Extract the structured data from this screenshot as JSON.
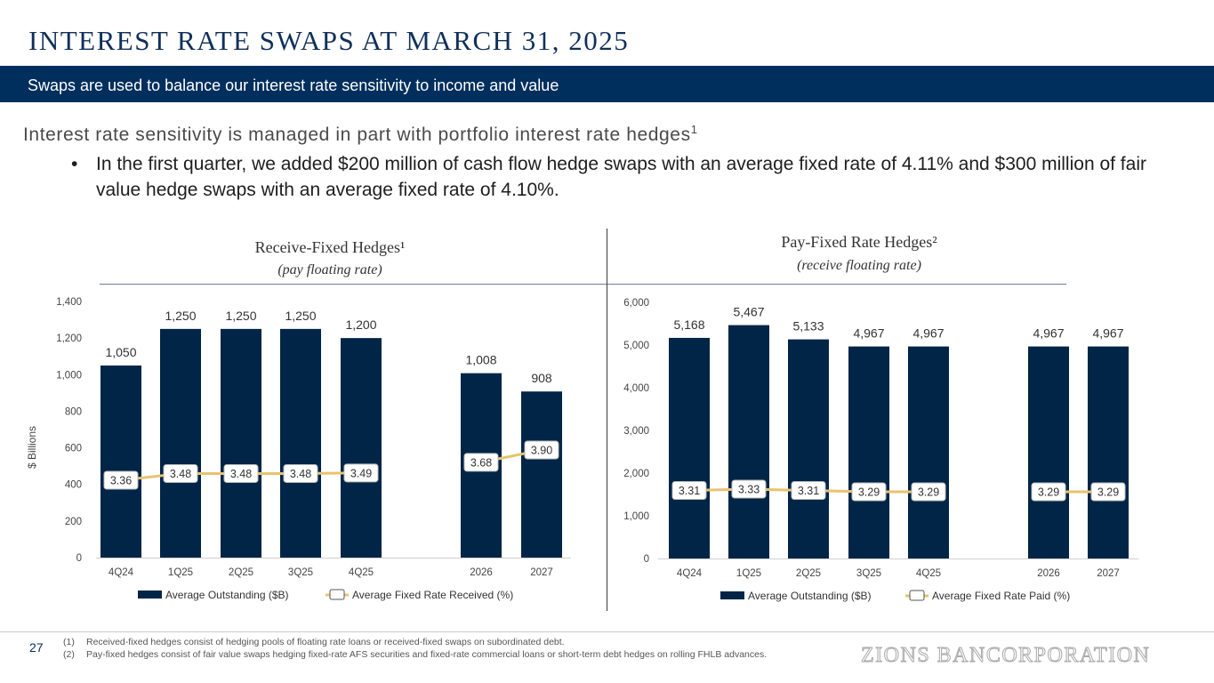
{
  "page": {
    "title": "INTEREST RATE SWAPS AT MARCH 31, 2025",
    "banner": "Swaps are used to balance our interest rate sensitivity to income and value",
    "headline": "Interest rate sensitivity is managed in part with portfolio interest rate hedges",
    "headline_sup": "1",
    "bullet_mark": "•",
    "bullet": "In the first quarter, we added $200 million of cash flow hedge swaps with an average fixed rate of 4.11% and $300 million of fair value hedge swaps with an average fixed rate of 4.10%.",
    "page_number": "27",
    "footnotes": [
      {
        "num": "(1)",
        "text": "Received-fixed hedges consist of hedging pools of floating rate loans or received-fixed swaps on subordinated debt."
      },
      {
        "num": "(2)",
        "text": "Pay-fixed hedges consist of fair value swaps hedging fixed-rate AFS securities and fixed-rate commercial loans or short-term debt hedges on rolling FHLB advances."
      }
    ],
    "logo": "ZIONS BANCORPORATION"
  },
  "colors": {
    "navy": "#002f5d",
    "bar": "#002547",
    "line": "#e8c36e",
    "label_box_border": "#bbbbbb"
  },
  "chart_data": [
    {
      "type": "bar",
      "title": "Receive-Fixed Hedges¹",
      "subtitle": "(pay floating rate)",
      "ylabel": "$ Billions",
      "ylim": [
        0,
        1400
      ],
      "yticks": [
        0,
        200,
        400,
        600,
        800,
        1000,
        1200,
        1400
      ],
      "categories": [
        "4Q24",
        "1Q25",
        "2Q25",
        "3Q25",
        "4Q25",
        "2026",
        "2027"
      ],
      "series": [
        {
          "name": "Average Outstanding ($B)",
          "kind": "bar",
          "values": [
            1050,
            1250,
            1250,
            1250,
            1200,
            1008,
            908
          ],
          "labels": [
            "1,050",
            "1,250",
            "1,250",
            "1,250",
            "1,200",
            "1,008",
            "908"
          ]
        },
        {
          "name": "Average Fixed Rate Received (%)",
          "kind": "line",
          "values": [
            3.36,
            3.48,
            3.48,
            3.48,
            3.49,
            3.68,
            3.9
          ],
          "labels": [
            "3.36",
            "3.48",
            "3.48",
            "3.48",
            "3.49",
            "3.68",
            "3.90"
          ]
        }
      ]
    },
    {
      "type": "bar",
      "title": "Pay-Fixed Rate Hedges²",
      "subtitle": "(receive floating rate)",
      "ylabel": "",
      "ylim": [
        0,
        6000
      ],
      "yticks": [
        0,
        1000,
        2000,
        3000,
        4000,
        5000,
        6000
      ],
      "categories": [
        "4Q24",
        "1Q25",
        "2Q25",
        "3Q25",
        "4Q25",
        "2026",
        "2027"
      ],
      "series": [
        {
          "name": "Average Outstanding ($B)",
          "kind": "bar",
          "values": [
            5168,
            5467,
            5133,
            4967,
            4967,
            4967,
            4967
          ],
          "labels": [
            "5,168",
            "5,467",
            "5,133",
            "4,967",
            "4,967",
            "4,967",
            "4,967"
          ]
        },
        {
          "name": "Average Fixed Rate Paid (%)",
          "kind": "line",
          "values": [
            3.31,
            3.33,
            3.31,
            3.29,
            3.29,
            3.29,
            3.29
          ],
          "labels": [
            "3.31",
            "3.33",
            "3.31",
            "3.29",
            "3.29",
            "3.29",
            "3.29"
          ]
        }
      ]
    }
  ]
}
